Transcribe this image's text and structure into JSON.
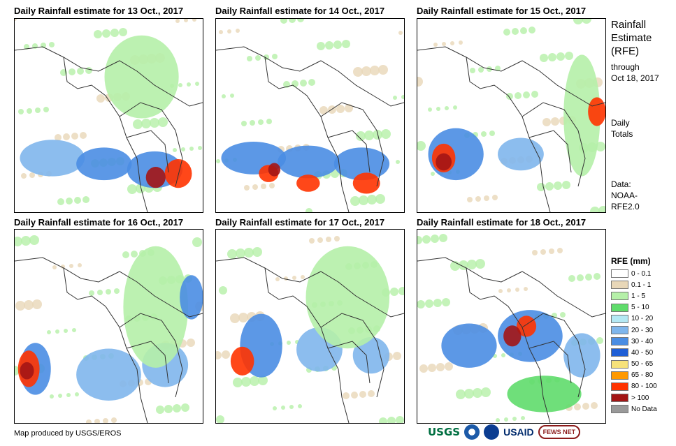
{
  "panels": [
    {
      "title": "Daily Rainfall estimate for 13 Oct., 2017"
    },
    {
      "title": "Daily Rainfall estimate for 14 Oct., 2017"
    },
    {
      "title": "Daily Rainfall estimate for 15 Oct., 2017"
    },
    {
      "title": "Daily Rainfall estimate for 16 Oct., 2017"
    },
    {
      "title": "Daily Rainfall estimate for 17 Oct., 2017"
    },
    {
      "title": "Daily Rainfall estimate for 18 Oct., 2017"
    }
  ],
  "side_info": {
    "title_lines": [
      "Rainfall",
      "Estimate",
      "(RFE)"
    ],
    "through": "through",
    "date": "Oct 18, 2017",
    "totals_lines": [
      "Daily",
      "Totals"
    ],
    "data_lines": [
      "Data:",
      "NOAA-",
      "RFE2.0"
    ]
  },
  "legend": {
    "title": "RFE (mm)",
    "items": [
      {
        "label": "0 - 0.1",
        "color": "#ffffff"
      },
      {
        "label": "0.1 - 1",
        "color": "#e8d7b8"
      },
      {
        "label": "1 - 5",
        "color": "#b5f0a8"
      },
      {
        "label": "5 - 10",
        "color": "#5fdc6b"
      },
      {
        "label": "10 - 20",
        "color": "#b4e9f4"
      },
      {
        "label": "20 - 30",
        "color": "#7fb6ec"
      },
      {
        "label": "30 - 40",
        "color": "#4a8de3"
      },
      {
        "label": "40 - 50",
        "color": "#1f5fd6"
      },
      {
        "label": "50 - 65",
        "color": "#f7e27a"
      },
      {
        "label": "65 - 80",
        "color": "#ff9900"
      },
      {
        "label": "80 - 100",
        "color": "#ff3300"
      },
      {
        "label": "> 100",
        "color": "#a31515"
      },
      {
        "label": "No Data",
        "color": "#999999"
      }
    ]
  },
  "footer": {
    "credit": "Map produced by USGS/EROS"
  },
  "logos": {
    "usgs": "USGS",
    "usaid": "USAID",
    "fews": "FEWS NET"
  }
}
